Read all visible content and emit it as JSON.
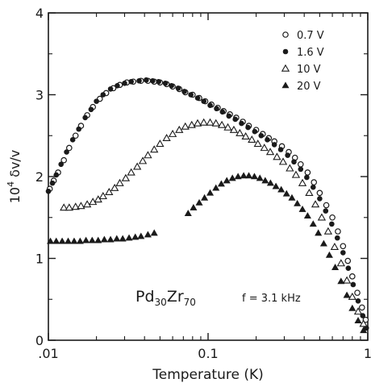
{
  "chart_data": {
    "type": "scatter",
    "title": "",
    "xlabel": "Temperature (K)",
    "ylabel_main": "10",
    "ylabel_sup": "4",
    "ylabel_rest": " δv/v",
    "xscale": "log",
    "xlim": [
      0.01,
      1
    ],
    "ylim": [
      0,
      4
    ],
    "grid": false,
    "legend_position": "top-right",
    "x_ticks": [
      {
        "value": 0.01,
        "label": ".01"
      },
      {
        "value": 0.1,
        "label": "0.1"
      },
      {
        "value": 1,
        "label": "1"
      }
    ],
    "y_ticks": [
      {
        "value": 0,
        "label": "0"
      },
      {
        "value": 1,
        "label": "1"
      },
      {
        "value": 2,
        "label": "2"
      },
      {
        "value": 3,
        "label": "3"
      },
      {
        "value": 4,
        "label": "4"
      }
    ],
    "annotations": {
      "material_base_1": "Pd",
      "material_sub_1": "30",
      "material_base_2": "Zr",
      "material_sub_2": "70",
      "frequency": "f = 3.1 kHz"
    },
    "series": [
      {
        "name": "0.7 V",
        "marker": "circle-open",
        "points": [
          [
            0.0102,
            1.85
          ],
          [
            0.0108,
            1.95
          ],
          [
            0.0115,
            2.05
          ],
          [
            0.0125,
            2.2
          ],
          [
            0.0135,
            2.35
          ],
          [
            0.0148,
            2.5
          ],
          [
            0.016,
            2.62
          ],
          [
            0.0175,
            2.75
          ],
          [
            0.019,
            2.85
          ],
          [
            0.021,
            2.95
          ],
          [
            0.023,
            3.02
          ],
          [
            0.0255,
            3.08
          ],
          [
            0.028,
            3.12
          ],
          [
            0.031,
            3.15
          ],
          [
            0.034,
            3.16
          ],
          [
            0.038,
            3.17
          ],
          [
            0.042,
            3.17
          ],
          [
            0.046,
            3.16
          ],
          [
            0.05,
            3.15
          ],
          [
            0.055,
            3.13
          ],
          [
            0.06,
            3.1
          ],
          [
            0.066,
            3.07
          ],
          [
            0.072,
            3.03
          ],
          [
            0.08,
            3.0
          ],
          [
            0.088,
            2.96
          ],
          [
            0.096,
            2.92
          ],
          [
            0.105,
            2.88
          ],
          [
            0.115,
            2.84
          ],
          [
            0.125,
            2.8
          ],
          [
            0.137,
            2.76
          ],
          [
            0.15,
            2.72
          ],
          [
            0.165,
            2.67
          ],
          [
            0.18,
            2.62
          ],
          [
            0.2,
            2.57
          ],
          [
            0.22,
            2.52
          ],
          [
            0.24,
            2.47
          ],
          [
            0.26,
            2.43
          ],
          [
            0.29,
            2.37
          ],
          [
            0.32,
            2.3
          ],
          [
            0.35,
            2.23
          ],
          [
            0.38,
            2.15
          ],
          [
            0.42,
            2.05
          ],
          [
            0.46,
            1.93
          ],
          [
            0.5,
            1.8
          ],
          [
            0.55,
            1.65
          ],
          [
            0.6,
            1.5
          ],
          [
            0.65,
            1.33
          ],
          [
            0.7,
            1.15
          ],
          [
            0.75,
            0.97
          ],
          [
            0.8,
            0.78
          ],
          [
            0.86,
            0.58
          ],
          [
            0.92,
            0.4
          ],
          [
            0.97,
            0.25
          ]
        ]
      },
      {
        "name": "1.6 V",
        "marker": "circle-filled",
        "points": [
          [
            0.01,
            1.82
          ],
          [
            0.0106,
            1.92
          ],
          [
            0.0112,
            2.02
          ],
          [
            0.012,
            2.15
          ],
          [
            0.013,
            2.3
          ],
          [
            0.0142,
            2.45
          ],
          [
            0.0155,
            2.58
          ],
          [
            0.017,
            2.72
          ],
          [
            0.0185,
            2.82
          ],
          [
            0.02,
            2.92
          ],
          [
            0.022,
            3.0
          ],
          [
            0.0245,
            3.07
          ],
          [
            0.027,
            3.11
          ],
          [
            0.03,
            3.14
          ],
          [
            0.033,
            3.16
          ],
          [
            0.037,
            3.17
          ],
          [
            0.041,
            3.18
          ],
          [
            0.045,
            3.17
          ],
          [
            0.049,
            3.16
          ],
          [
            0.054,
            3.14
          ],
          [
            0.059,
            3.11
          ],
          [
            0.065,
            3.08
          ],
          [
            0.071,
            3.04
          ],
          [
            0.078,
            3.0
          ],
          [
            0.086,
            2.96
          ],
          [
            0.094,
            2.92
          ],
          [
            0.103,
            2.87
          ],
          [
            0.113,
            2.83
          ],
          [
            0.123,
            2.79
          ],
          [
            0.135,
            2.74
          ],
          [
            0.148,
            2.7
          ],
          [
            0.162,
            2.65
          ],
          [
            0.178,
            2.6
          ],
          [
            0.196,
            2.55
          ],
          [
            0.215,
            2.5
          ],
          [
            0.235,
            2.45
          ],
          [
            0.26,
            2.39
          ],
          [
            0.285,
            2.33
          ],
          [
            0.315,
            2.26
          ],
          [
            0.345,
            2.18
          ],
          [
            0.38,
            2.09
          ],
          [
            0.415,
            1.99
          ],
          [
            0.455,
            1.87
          ],
          [
            0.5,
            1.73
          ],
          [
            0.545,
            1.58
          ],
          [
            0.595,
            1.42
          ],
          [
            0.645,
            1.25
          ],
          [
            0.7,
            1.07
          ],
          [
            0.755,
            0.88
          ],
          [
            0.81,
            0.68
          ],
          [
            0.87,
            0.48
          ],
          [
            0.93,
            0.3
          ],
          [
            0.98,
            0.15
          ]
        ]
      },
      {
        "name": "10 V",
        "marker": "triangle-open",
        "points": [
          [
            0.0125,
            1.62
          ],
          [
            0.0135,
            1.62
          ],
          [
            0.0148,
            1.63
          ],
          [
            0.016,
            1.64
          ],
          [
            0.0175,
            1.66
          ],
          [
            0.019,
            1.69
          ],
          [
            0.0205,
            1.72
          ],
          [
            0.022,
            1.76
          ],
          [
            0.024,
            1.81
          ],
          [
            0.026,
            1.86
          ],
          [
            0.028,
            1.92
          ],
          [
            0.0305,
            1.98
          ],
          [
            0.033,
            2.05
          ],
          [
            0.036,
            2.12
          ],
          [
            0.039,
            2.19
          ],
          [
            0.042,
            2.26
          ],
          [
            0.046,
            2.33
          ],
          [
            0.05,
            2.4
          ],
          [
            0.055,
            2.47
          ],
          [
            0.06,
            2.52
          ],
          [
            0.066,
            2.57
          ],
          [
            0.072,
            2.61
          ],
          [
            0.079,
            2.63
          ],
          [
            0.086,
            2.65
          ],
          [
            0.094,
            2.66
          ],
          [
            0.103,
            2.66
          ],
          [
            0.112,
            2.65
          ],
          [
            0.122,
            2.63
          ],
          [
            0.133,
            2.6
          ],
          [
            0.145,
            2.57
          ],
          [
            0.158,
            2.53
          ],
          [
            0.172,
            2.49
          ],
          [
            0.188,
            2.45
          ],
          [
            0.205,
            2.4
          ],
          [
            0.225,
            2.35
          ],
          [
            0.245,
            2.3
          ],
          [
            0.27,
            2.24
          ],
          [
            0.295,
            2.18
          ],
          [
            0.325,
            2.1
          ],
          [
            0.355,
            2.02
          ],
          [
            0.39,
            1.92
          ],
          [
            0.43,
            1.8
          ],
          [
            0.47,
            1.66
          ],
          [
            0.515,
            1.5
          ],
          [
            0.565,
            1.33
          ],
          [
            0.62,
            1.14
          ],
          [
            0.68,
            0.94
          ],
          [
            0.74,
            0.73
          ],
          [
            0.8,
            0.53
          ],
          [
            0.87,
            0.35
          ],
          [
            0.94,
            0.2
          ]
        ]
      },
      {
        "name": "20 V",
        "marker": "triangle-filled",
        "points": [
          [
            0.0103,
            1.21
          ],
          [
            0.0112,
            1.21
          ],
          [
            0.0122,
            1.21
          ],
          [
            0.0133,
            1.21
          ],
          [
            0.0145,
            1.21
          ],
          [
            0.0158,
            1.21
          ],
          [
            0.0172,
            1.22
          ],
          [
            0.0188,
            1.22
          ],
          [
            0.0205,
            1.22
          ],
          [
            0.0224,
            1.23
          ],
          [
            0.0245,
            1.23
          ],
          [
            0.0268,
            1.24
          ],
          [
            0.0292,
            1.24
          ],
          [
            0.032,
            1.25
          ],
          [
            0.035,
            1.26
          ],
          [
            0.038,
            1.27
          ],
          [
            0.042,
            1.29
          ],
          [
            0.046,
            1.31
          ],
          [
            0.075,
            1.55
          ],
          [
            0.081,
            1.62
          ],
          [
            0.088,
            1.68
          ],
          [
            0.095,
            1.74
          ],
          [
            0.103,
            1.8
          ],
          [
            0.112,
            1.86
          ],
          [
            0.121,
            1.91
          ],
          [
            0.131,
            1.95
          ],
          [
            0.142,
            1.98
          ],
          [
            0.154,
            2.0
          ],
          [
            0.167,
            2.01
          ],
          [
            0.18,
            2.01
          ],
          [
            0.195,
            2.0
          ],
          [
            0.211,
            1.98
          ],
          [
            0.228,
            1.95
          ],
          [
            0.246,
            1.92
          ],
          [
            0.266,
            1.88
          ],
          [
            0.287,
            1.84
          ],
          [
            0.31,
            1.79
          ],
          [
            0.335,
            1.74
          ],
          [
            0.362,
            1.67
          ],
          [
            0.39,
            1.6
          ],
          [
            0.42,
            1.52
          ],
          [
            0.455,
            1.42
          ],
          [
            0.49,
            1.31
          ],
          [
            0.53,
            1.18
          ],
          [
            0.575,
            1.04
          ],
          [
            0.625,
            0.89
          ],
          [
            0.68,
            0.72
          ],
          [
            0.74,
            0.55
          ],
          [
            0.8,
            0.39
          ],
          [
            0.87,
            0.24
          ],
          [
            0.94,
            0.12
          ]
        ]
      }
    ]
  }
}
